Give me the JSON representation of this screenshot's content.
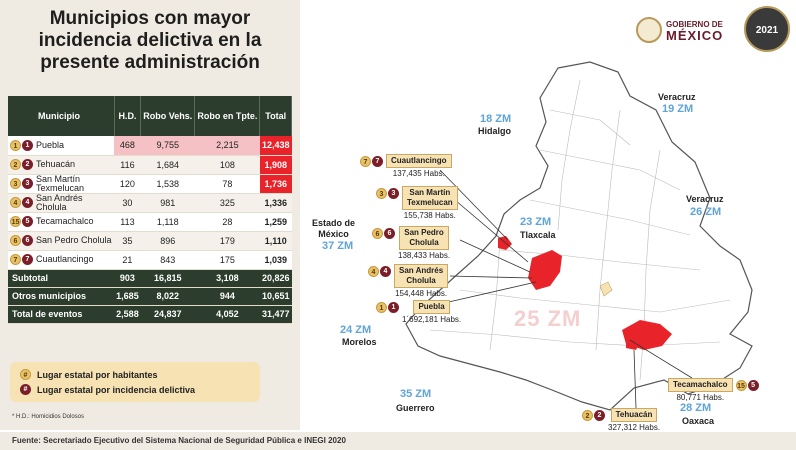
{
  "title": [
    "Municipios con mayor",
    "incidencia delictiva en la",
    "presente administración"
  ],
  "chart_data": {
    "type": "table",
    "columns": [
      "Municipio",
      "H.D.",
      "Robo Vehs.",
      "Robo en Tpte.",
      "Total"
    ],
    "rows": [
      {
        "pop_rank": "1",
        "crime_rank": "1",
        "municipio": "Puebla",
        "hd": "468",
        "robo_vehs": "9,755",
        "robo_tpte": "2,215",
        "total": "12,438"
      },
      {
        "pop_rank": "2",
        "crime_rank": "2",
        "municipio": "Tehuacán",
        "hd": "116",
        "robo_vehs": "1,684",
        "robo_tpte": "108",
        "total": "1,908"
      },
      {
        "pop_rank": "3",
        "crime_rank": "3",
        "municipio": "San Martín Texmelucan",
        "hd": "120",
        "robo_vehs": "1,538",
        "robo_tpte": "78",
        "total": "1,736"
      },
      {
        "pop_rank": "4",
        "crime_rank": "4",
        "municipio": "San Andrés Cholula",
        "hd": "30",
        "robo_vehs": "981",
        "robo_tpte": "325",
        "total": "1,336"
      },
      {
        "pop_rank": "15",
        "crime_rank": "5",
        "municipio": "Tecamachalco",
        "hd": "113",
        "robo_vehs": "1,118",
        "robo_tpte": "28",
        "total": "1,259"
      },
      {
        "pop_rank": "6",
        "crime_rank": "6",
        "municipio": "San Pedro Cholula",
        "hd": "35",
        "robo_vehs": "896",
        "robo_tpte": "179",
        "total": "1,110"
      },
      {
        "pop_rank": "7",
        "crime_rank": "7",
        "municipio": "Cuautlancingo",
        "hd": "21",
        "robo_vehs": "843",
        "robo_tpte": "175",
        "total": "1,039"
      }
    ],
    "summary": [
      {
        "label": "Subtotal",
        "hd": "903",
        "robo_vehs": "16,815",
        "robo_tpte": "3,108",
        "total": "20,826"
      },
      {
        "label": "Otros municipios",
        "hd": "1,685",
        "robo_vehs": "8,022",
        "robo_tpte": "944",
        "total": "10,651"
      },
      {
        "label": "Total de eventos",
        "hd": "2,588",
        "robo_vehs": "24,837",
        "robo_tpte": "4,052",
        "total": "31,477"
      }
    ],
    "highlight_colors": {
      "red": "#e8232a",
      "pink": "#f6c1c4",
      "header": "#2d3d2d",
      "gold": "#e8c16a",
      "maroon": "#7a1e2a"
    }
  },
  "legend": {
    "pop_rank": {
      "badge": "#",
      "label": "Lugar estatal por habitantes"
    },
    "crime_rank": {
      "badge": "#",
      "label": "Lugar estatal por incidencia delictiva"
    }
  },
  "footnote": "* H.D.: Homicidios Dolosos",
  "source": "Fuente:  Secretariado Ejecutivo del Sistema Nacional de Seguridad Pública e INEGI 2020",
  "logo": {
    "line1": "GOBIERNO DE",
    "line2": "MÉXICO",
    "year": "2021"
  },
  "map": {
    "zm_labels": [
      {
        "id": "hidalgo",
        "text": "18 ZM"
      },
      {
        "id": "veracruz-n",
        "text": "19 ZM"
      },
      {
        "id": "tlaxcala",
        "text": "23 ZM"
      },
      {
        "id": "veracruz-s",
        "text": "26 ZM"
      },
      {
        "id": "edomex",
        "text": "37 ZM"
      },
      {
        "id": "morelos",
        "text": "24 ZM"
      },
      {
        "id": "guerrero",
        "text": "35 ZM"
      },
      {
        "id": "oaxaca",
        "text": "28 ZM"
      },
      {
        "id": "puebla",
        "text": "25 ZM"
      }
    ],
    "states": {
      "hidalgo": "Hidalgo",
      "veracruz_n": "Veracruz",
      "veracruz_s": "Veracruz",
      "edomex": [
        "Estado de",
        "México"
      ],
      "tlaxcala": "Tlaxcala",
      "morelos": "Morelos",
      "guerrero": "Guerrero",
      "oaxaca": "Oaxaca"
    },
    "callouts": [
      {
        "id": "cuautlancingo",
        "name": [
          "Cuautlancingo"
        ],
        "pop": "137,435 Habs.",
        "b1": "7",
        "b2": "7"
      },
      {
        "id": "texmelucan",
        "name": [
          "San Martín",
          "Texmelucan"
        ],
        "pop": "155,738 Habs.",
        "b1": "3",
        "b2": "3"
      },
      {
        "id": "spcholula",
        "name": [
          "San Pedro",
          "Cholula"
        ],
        "pop": "138,433 Habs.",
        "b1": "6",
        "b2": "6"
      },
      {
        "id": "sacholula",
        "name": [
          "San Andrés",
          "Cholula"
        ],
        "pop": "154,448 Habs.",
        "b1": "4",
        "b2": "4"
      },
      {
        "id": "puebla",
        "name": [
          "Puebla"
        ],
        "pop": "1´692,181 Habs.",
        "b1": "1",
        "b2": "1"
      },
      {
        "id": "tecamachalco",
        "name": [
          "Tecamachalco"
        ],
        "pop": "80,771 Habs.",
        "b1": "15",
        "b2": "5"
      },
      {
        "id": "tehuacan",
        "name": [
          "Tehuacán"
        ],
        "pop": "327,312 Habs.",
        "b1": "2",
        "b2": "2"
      }
    ],
    "colors": {
      "zm": "#5fa4d8",
      "highlight": "#e8232a",
      "callout_bg": "#f7e2b4"
    }
  }
}
